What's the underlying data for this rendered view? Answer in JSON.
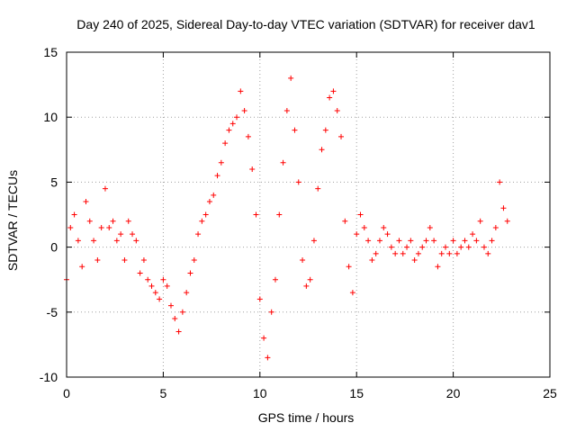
{
  "chart_data": {
    "type": "scatter",
    "title": "Day 240 of 2025, Sidereal Day-to-day VTEC variation (SDTVAR) for receiver dav1",
    "xlabel": "GPS time / hours",
    "ylabel": "SDTVAR / TECUs",
    "xlim": [
      0,
      25
    ],
    "ylim": [
      -10,
      15
    ],
    "xticks": [
      0,
      5,
      10,
      15,
      20,
      25
    ],
    "yticks": [
      -10,
      -5,
      0,
      5,
      10,
      15
    ],
    "grid": true,
    "marker": "+",
    "color": "#ff0000",
    "series": [
      {
        "name": "dav1",
        "x": [
          0.0,
          0.2,
          0.4,
          0.6,
          0.8,
          1.0,
          1.2,
          1.4,
          1.6,
          1.8,
          2.0,
          2.2,
          2.4,
          2.6,
          2.8,
          3.0,
          3.2,
          3.4,
          3.6,
          3.8,
          4.0,
          4.2,
          4.4,
          4.6,
          4.8,
          5.0,
          5.2,
          5.4,
          5.6,
          5.8,
          6.0,
          6.2,
          6.4,
          6.6,
          6.8,
          7.0,
          7.2,
          7.4,
          7.6,
          7.8,
          8.0,
          8.2,
          8.4,
          8.6,
          8.8,
          9.0,
          9.2,
          9.4,
          9.6,
          9.8,
          10.0,
          10.2,
          10.4,
          10.6,
          10.8,
          11.0,
          11.2,
          11.4,
          11.6,
          11.8,
          12.0,
          12.2,
          12.4,
          12.6,
          12.8,
          13.0,
          13.2,
          13.4,
          13.6,
          13.8,
          14.0,
          14.2,
          14.4,
          14.6,
          14.8,
          15.0,
          15.2,
          15.4,
          15.6,
          15.8,
          16.0,
          16.2,
          16.4,
          16.6,
          16.8,
          17.0,
          17.2,
          17.4,
          17.6,
          17.8,
          18.0,
          18.2,
          18.4,
          18.6,
          18.8,
          19.0,
          19.2,
          19.4,
          19.6,
          19.8,
          20.0,
          20.2,
          20.4,
          20.6,
          20.8,
          21.0,
          21.2,
          21.4,
          21.6,
          21.8,
          22.0,
          22.2,
          22.4,
          22.6,
          22.8
        ],
        "y": [
          -2.5,
          1.5,
          2.5,
          0.5,
          -1.5,
          3.5,
          2.0,
          0.5,
          -1.0,
          1.5,
          4.5,
          1.5,
          2.0,
          0.5,
          1.0,
          -1.0,
          2.0,
          1.0,
          0.5,
          -2.0,
          -1.0,
          -2.5,
          -3.0,
          -3.5,
          -4.0,
          -2.5,
          -3.0,
          -4.5,
          -5.5,
          -6.5,
          -5.0,
          -3.5,
          -2.0,
          -1.0,
          1.0,
          2.0,
          2.5,
          3.5,
          4.0,
          5.5,
          6.5,
          8.0,
          9.0,
          9.5,
          10.0,
          12.0,
          10.5,
          8.5,
          6.0,
          2.5,
          -4.0,
          -7.0,
          -8.5,
          -5.0,
          -2.5,
          2.5,
          6.5,
          10.5,
          13.0,
          9.0,
          5.0,
          -1.0,
          -3.0,
          -2.5,
          0.5,
          4.5,
          7.5,
          9.0,
          11.5,
          12.0,
          10.5,
          8.5,
          2.0,
          -1.5,
          -3.5,
          1.0,
          2.5,
          1.5,
          0.5,
          -1.0,
          -0.5,
          0.5,
          1.5,
          1.0,
          0.0,
          -0.5,
          0.5,
          -0.5,
          0.0,
          0.5,
          -1.0,
          -0.5,
          0.0,
          0.5,
          1.5,
          0.5,
          -1.5,
          -0.5,
          0.0,
          -0.5,
          0.5,
          -0.5,
          0.0,
          0.5,
          0.0,
          1.0,
          0.5,
          2.0,
          0.0,
          -0.5,
          0.5,
          1.5,
          5.0,
          3.0,
          2.0
        ]
      }
    ]
  }
}
